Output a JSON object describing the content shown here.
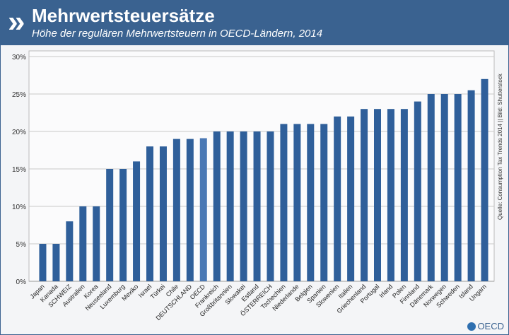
{
  "header": {
    "title": "Mehrwertsteuersätze",
    "subtitle": "Höhe der regulären Mehrwertsteuern in OECD-Ländern, 2014",
    "logo_icon": "oecd-chevrons-icon"
  },
  "source": "Quelle: Consumption Tax Trends 2014 || Bild: Shutterstock",
  "footer_logo": "OECD",
  "colors": {
    "header": "#3a6290",
    "bar": "#2f5f9a",
    "highlight": "#4a78b4"
  },
  "chart_data": {
    "type": "bar",
    "title": "Mehrwertsteuersätze",
    "categories": [
      "Japan",
      "Kanada",
      "SCHWEIZ",
      "Australien",
      "Korea",
      "Neuseeland",
      "Luxemburg",
      "Mexiko",
      "Israel",
      "Türkei",
      "Chile",
      "DEUTSCHLAND",
      "OECD",
      "Frankreich",
      "Großbritannien",
      "Slowakei",
      "Estland",
      "ÖSTERREICH",
      "Tschechien",
      "Niederlande",
      "Belgien",
      "Spanien",
      "Slowenien",
      "Italien",
      "Griechenland",
      "Portugal",
      "Irland",
      "Polen",
      "Finnland",
      "Dänemark",
      "Norwegen",
      "Schweden",
      "Island",
      "Ungarn"
    ],
    "values": [
      5,
      5,
      8,
      10,
      10,
      15,
      15,
      16,
      18,
      18,
      19,
      19,
      19.1,
      20,
      20,
      20,
      20,
      20,
      21,
      21,
      21,
      21,
      22,
      22,
      23,
      23,
      23,
      23,
      24,
      25,
      25,
      25,
      25.5,
      27
    ],
    "highlight": "OECD",
    "ylim": [
      0,
      30
    ],
    "yticks": [
      "0%",
      "5%",
      "10%",
      "15%",
      "20%",
      "25%",
      "30%"
    ],
    "grid": true,
    "xlabel": "",
    "ylabel": ""
  }
}
